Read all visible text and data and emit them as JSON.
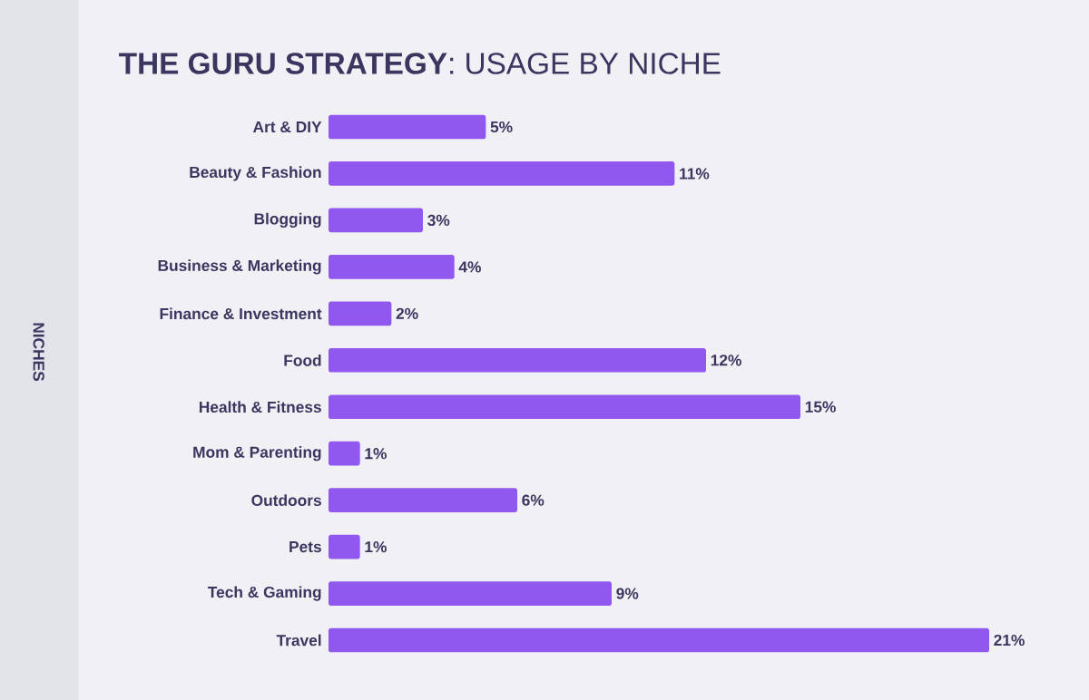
{
  "chart_data": {
    "type": "bar",
    "orientation": "horizontal",
    "title": "**THE GURU STRATEGY**: USAGE BY NICHE",
    "annotations": [
      "NICHES"
    ],
    "categories": [
      "Art & DIY",
      "Beauty & Fashion",
      "Blogging",
      "Business & Marketing",
      "Finance & Investment",
      "Food",
      "Health & Fitness",
      "Mom & Parenting",
      "Outdoors",
      "Pets",
      "Tech & Gaming",
      "Travel"
    ],
    "values": [
      5,
      11,
      3,
      4,
      2,
      12,
      15,
      1,
      6,
      1,
      9,
      21
    ],
    "value_labels": [
      "5%",
      "11%",
      "3%",
      "4%",
      "2%",
      "12%",
      "15%",
      "1%",
      "6%",
      "1%",
      "9%",
      "21%"
    ],
    "color": "#9058ee"
  }
}
